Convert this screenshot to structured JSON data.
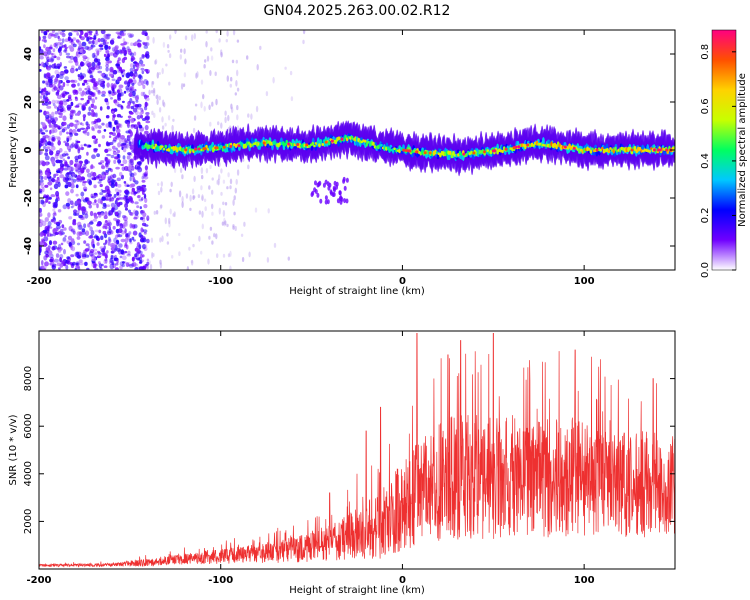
{
  "chart_data": [
    {
      "type": "heatmap",
      "title": "GN04.2025.263.00.02.R12",
      "xlabel": "Height of straight line (km)",
      "ylabel": "Frequency (Hz)",
      "xlim": [
        -200,
        150
      ],
      "ylim": [
        -50,
        50
      ],
      "xticks": [
        -200,
        -100,
        0,
        100
      ],
      "xtick_labels": [
        "-200",
        "-100",
        "0",
        "100"
      ],
      "yticks": [
        -40,
        -20,
        0,
        20,
        40
      ],
      "ytick_labels": [
        "-40",
        "-20",
        "0",
        "20",
        "40"
      ],
      "colorbar": {
        "label": "Normalized spectral amplitude",
        "range": [
          0.0,
          0.88
        ],
        "ticks": [
          0.0,
          0.2,
          0.4,
          0.6,
          0.8
        ],
        "tick_labels": [
          "0.0",
          "0.2",
          "0.4",
          "0.6",
          "0.8"
        ],
        "colormap": [
          "#ffffff",
          "#7000ff",
          "#0000ff",
          "#00c8ff",
          "#00ff60",
          "#c8ff00",
          "#ffd200",
          "#ff5000",
          "#ff0080"
        ]
      },
      "signal_band": {
        "height_start_km": -147,
        "center_frequency_hz": [
          [
            -145,
            2
          ],
          [
            -120,
            0
          ],
          [
            -100,
            1
          ],
          [
            -75,
            3
          ],
          [
            -50,
            2
          ],
          [
            -30,
            5
          ],
          [
            -10,
            1
          ],
          [
            10,
            -1
          ],
          [
            30,
            -2
          ],
          [
            55,
            0
          ],
          [
            75,
            3
          ],
          [
            100,
            0
          ],
          [
            150,
            0
          ]
        ],
        "half_width_hz": 6,
        "peak_amplitude": 0.85
      },
      "noise_region_end_km": -140,
      "secondary_feature": {
        "height_range_km": [
          -50,
          -30
        ],
        "frequency_range_hz": [
          -22,
          -12
        ]
      }
    },
    {
      "type": "line",
      "xlabel": "Height of straight line (km)",
      "ylabel": "SNR (10 * v/v)",
      "xlim": [
        -200,
        150
      ],
      "ylim": [
        0,
        10000
      ],
      "xticks": [
        -200,
        -100,
        0,
        100
      ],
      "xtick_labels": [
        "-200",
        "-100",
        "0",
        "100"
      ],
      "yticks": [
        2000,
        4000,
        6000,
        8000
      ],
      "ytick_labels": [
        "2000",
        "4000",
        "6000",
        "8000"
      ],
      "color": "#ee3030",
      "envelope": {
        "x": [
          -200,
          -160,
          -145,
          -120,
          -100,
          -80,
          -60,
          -40,
          -30,
          -20,
          -10,
          0,
          10,
          20,
          40,
          60,
          80,
          100,
          120,
          150
        ],
        "mean": [
          150,
          180,
          250,
          420,
          520,
          650,
          800,
          1100,
          1350,
          1600,
          2000,
          2700,
          3300,
          3700,
          4000,
          3900,
          3800,
          3750,
          3600,
          3500
        ],
        "spread": [
          40,
          60,
          120,
          200,
          260,
          330,
          450,
          650,
          800,
          1000,
          1300,
          1600,
          1900,
          2100,
          2300,
          2200,
          2100,
          2050,
          1900,
          1800
        ]
      },
      "peaks": [
        [
          -40,
          3200
        ],
        [
          -25,
          4000
        ],
        [
          -20,
          5800
        ],
        [
          -12,
          6800
        ],
        [
          8,
          9900
        ],
        [
          25,
          9000
        ],
        [
          32,
          9600
        ],
        [
          50,
          9900
        ],
        [
          95,
          9200
        ],
        [
          108,
          8500
        ],
        [
          138,
          8000
        ]
      ]
    }
  ]
}
